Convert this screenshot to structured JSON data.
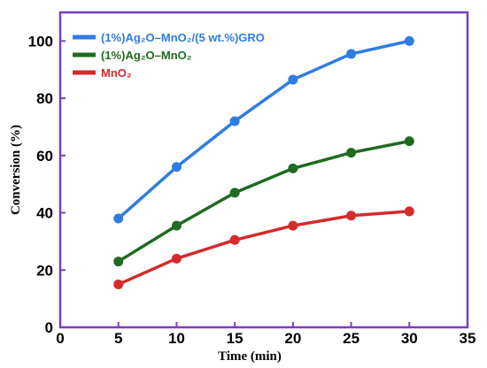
{
  "chart_data": {
    "type": "line",
    "xlabel": "Time (min)",
    "ylabel": "Conversion (%)",
    "xlim": [
      0,
      35
    ],
    "ylim": [
      0,
      110
    ],
    "xticks": [
      0,
      5,
      10,
      15,
      20,
      25,
      30,
      35
    ],
    "yticks": [
      0,
      20,
      40,
      60,
      80,
      100
    ],
    "grid": false,
    "legend_position": "top-left",
    "frame_color": "#7b3fbf",
    "x": [
      5,
      10,
      15,
      20,
      25,
      30
    ],
    "series": [
      {
        "name": "(1%)Ag₂O–MnO₂/(5 wt.%)GRO",
        "color": "#2f7de1",
        "values": [
          38,
          56,
          72,
          86.5,
          95.5,
          100
        ]
      },
      {
        "name": "(1%)Ag₂O–MnO₂",
        "color": "#1f6b1f",
        "values": [
          23,
          35.5,
          47,
          55.5,
          61,
          65
        ]
      },
      {
        "name": "MnO₂",
        "color": "#d42a2a",
        "values": [
          15,
          24,
          30.5,
          35.5,
          39,
          40.5
        ]
      }
    ]
  }
}
